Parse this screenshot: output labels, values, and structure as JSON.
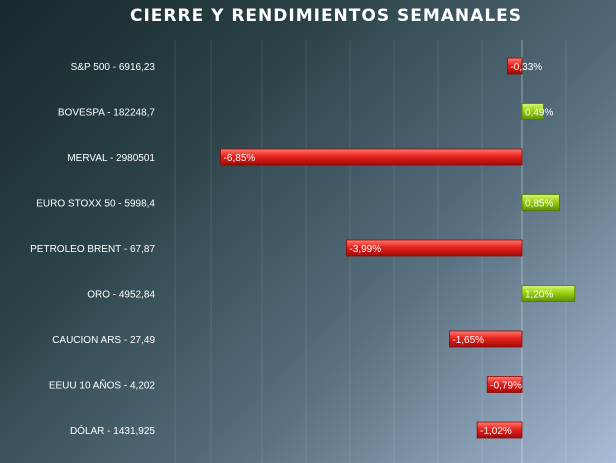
{
  "chart_data": {
    "type": "bar",
    "orientation": "horizontal",
    "title": "CIERRE Y RENDIMIENTOS SEMANALES",
    "categories": [
      "S&P 500 - 6916,23",
      "BOVESPA - 182248,7",
      "MERVAL - 2980501",
      "EURO STOXX 50 - 5998,4",
      "PETROLEO BRENT - 67,87",
      "ORO - 4952,84",
      "CAUCION ARS - 27,49",
      "EEUU 10 AÑOS - 4,202",
      "DÓLAR - 1431,925"
    ],
    "values": [
      -0.33,
      0.49,
      -6.85,
      0.85,
      -3.99,
      1.2,
      -1.65,
      -0.79,
      -1.02
    ],
    "value_labels": [
      "-0,33%",
      "0,49%",
      "-6,85%",
      "0,85%",
      "-3,99%",
      "1,20%",
      "-1,65%",
      "-0,79%",
      "-1,02%"
    ],
    "xlim": [
      -7,
      2
    ],
    "grid": true,
    "legend": "none",
    "colors": {
      "positive": "#9ad30f",
      "negative": "#e8231f"
    }
  }
}
